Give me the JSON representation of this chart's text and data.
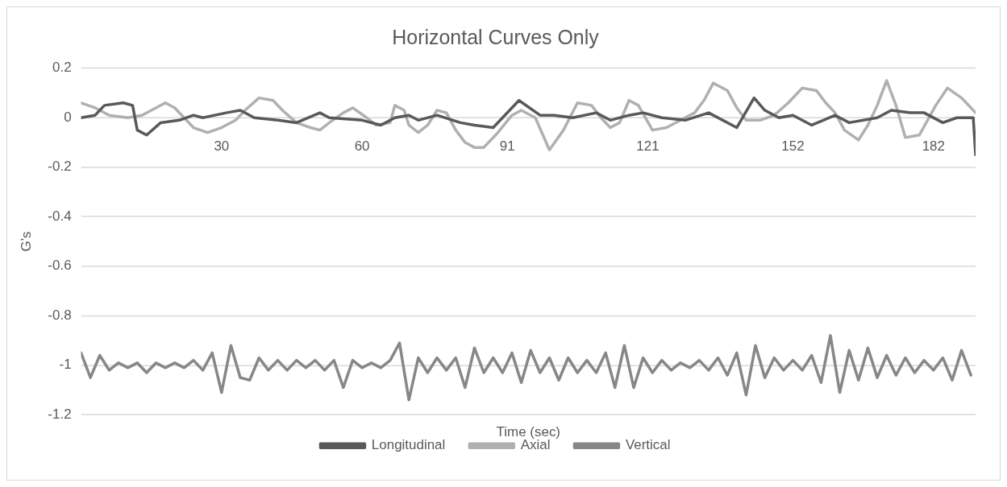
{
  "chart_data": {
    "type": "line",
    "title": "Horizontal Curves Only",
    "xlabel": "Time (sec)",
    "ylabel": "G’s",
    "xlim": [
      0,
      191
    ],
    "xticks": [
      30,
      60,
      91,
      121,
      152,
      182
    ],
    "ylim": [
      -1.2,
      0.2
    ],
    "yticks": [
      0.2,
      0,
      -0.2,
      -0.4,
      -0.6,
      -0.8,
      -1,
      -1.2
    ],
    "grid": "y",
    "legend": "bottom",
    "line_style": "solid",
    "marker": "none",
    "series": [
      {
        "name": "Longitudinal",
        "color": "#595959",
        "x": [
          0,
          3,
          5,
          9,
          11,
          12,
          14,
          17,
          21,
          24,
          26,
          31,
          34,
          37,
          42,
          46,
          51,
          53,
          60,
          64,
          67,
          70,
          72,
          76,
          81,
          84,
          88,
          93.5,
          98,
          101,
          105,
          110,
          113,
          117,
          120,
          124,
          129,
          134,
          140,
          143.7,
          146,
          149,
          152,
          156,
          161,
          164,
          170,
          173,
          177,
          180,
          184,
          187,
          190.5,
          191
        ],
        "values": [
          0,
          0.01,
          0.05,
          0.06,
          0.05,
          -0.05,
          -0.07,
          -0.02,
          -0.01,
          0.01,
          0,
          0.02,
          0.03,
          0,
          -0.01,
          -0.02,
          0.02,
          0,
          -0.01,
          -0.03,
          0,
          0.01,
          -0.01,
          0.01,
          -0.02,
          -0.03,
          -0.04,
          0.07,
          0.01,
          0.01,
          0,
          0.02,
          -0.01,
          0.01,
          0.02,
          0,
          -0.01,
          0.02,
          -0.04,
          0.08,
          0.03,
          0,
          0.01,
          -0.03,
          0.01,
          -0.02,
          0,
          0.03,
          0.02,
          0.02,
          -0.02,
          0,
          0,
          -0.15
        ]
      },
      {
        "name": "Axial",
        "color": "#b0b0b0",
        "x": [
          0,
          3,
          6,
          10,
          13,
          16,
          18,
          20,
          22,
          24,
          27,
          30,
          33,
          35,
          38,
          41,
          43,
          46,
          49,
          51,
          53,
          56,
          58,
          61,
          63,
          66,
          67,
          69,
          70,
          72,
          74,
          76,
          78,
          80,
          82,
          84,
          86,
          89,
          92,
          94,
          97,
          100,
          103,
          106,
          109,
          111,
          113,
          115,
          117,
          119,
          122,
          125,
          128,
          131,
          133,
          135,
          138,
          140,
          142,
          145,
          148,
          151,
          154,
          157,
          159,
          161,
          163,
          166,
          168,
          170,
          172,
          174,
          176,
          179,
          182.5,
          185,
          188,
          191
        ],
        "values": [
          0.06,
          0.04,
          0.01,
          0,
          0.01,
          0.04,
          0.06,
          0.04,
          0,
          -0.04,
          -0.06,
          -0.04,
          -0.01,
          0.03,
          0.08,
          0.07,
          0.03,
          -0.02,
          -0.04,
          -0.05,
          -0.02,
          0.02,
          0.04,
          0,
          -0.03,
          -0.02,
          0.05,
          0.03,
          -0.03,
          -0.06,
          -0.03,
          0.03,
          0.02,
          -0.05,
          -0.1,
          -0.12,
          -0.12,
          -0.06,
          0.01,
          0.03,
          0,
          -0.13,
          -0.05,
          0.06,
          0.05,
          0,
          -0.04,
          -0.02,
          0.07,
          0.05,
          -0.05,
          -0.04,
          -0.01,
          0.02,
          0.07,
          0.14,
          0.11,
          0.04,
          -0.01,
          -0.01,
          0.01,
          0.06,
          0.12,
          0.11,
          0.06,
          0.02,
          -0.05,
          -0.09,
          -0.03,
          0.05,
          0.15,
          0.05,
          -0.08,
          -0.07,
          0.05,
          0.12,
          0.08,
          0.02
        ]
      },
      {
        "name": "Vertical",
        "color": "#878787",
        "x": [
          0,
          2,
          4,
          6,
          8,
          10,
          12,
          14,
          16,
          18,
          20,
          22,
          24,
          26,
          28,
          30,
          32,
          34,
          36,
          38,
          40,
          42,
          44,
          46,
          48,
          50,
          52,
          54,
          56,
          58,
          60,
          62,
          64,
          66,
          68,
          70,
          72,
          74,
          76,
          78,
          80,
          82,
          84,
          86,
          88,
          90,
          92,
          94,
          96,
          98,
          100,
          102,
          104,
          106,
          108,
          110,
          112,
          114,
          116,
          118,
          120,
          122,
          124,
          126,
          128,
          130,
          132,
          134,
          136,
          138,
          140,
          142,
          144,
          146,
          148,
          150,
          152,
          154,
          156,
          158,
          160,
          162,
          164,
          166,
          168,
          170,
          172,
          174,
          176,
          178,
          180,
          182,
          184,
          186,
          188,
          190
        ],
        "values": [
          -0.95,
          -1.05,
          -0.96,
          -1.02,
          -0.99,
          -1.01,
          -0.99,
          -1.03,
          -0.99,
          -1.01,
          -0.99,
          -1.01,
          -0.98,
          -1.02,
          -0.95,
          -1.11,
          -0.92,
          -1.05,
          -1.06,
          -0.97,
          -1.02,
          -0.98,
          -1.02,
          -0.98,
          -1.01,
          -0.98,
          -1.02,
          -0.98,
          -1.09,
          -0.98,
          -1.01,
          -0.99,
          -1.01,
          -0.98,
          -0.91,
          -1.14,
          -0.97,
          -1.03,
          -0.97,
          -1.02,
          -0.97,
          -1.09,
          -0.93,
          -1.03,
          -0.97,
          -1.03,
          -0.95,
          -1.07,
          -0.94,
          -1.03,
          -0.97,
          -1.06,
          -0.97,
          -1.03,
          -0.98,
          -1.03,
          -0.95,
          -1.09,
          -0.92,
          -1.09,
          -0.97,
          -1.03,
          -0.98,
          -1.02,
          -0.99,
          -1.01,
          -0.98,
          -1.02,
          -0.97,
          -1.04,
          -0.95,
          -1.12,
          -0.92,
          -1.05,
          -0.97,
          -1.02,
          -0.98,
          -1.02,
          -0.96,
          -1.07,
          -0.88,
          -1.11,
          -0.94,
          -1.06,
          -0.93,
          -1.05,
          -0.96,
          -1.04,
          -0.97,
          -1.03,
          -0.98,
          -1.02,
          -0.97,
          -1.06,
          -0.94,
          -1.04
        ]
      }
    ]
  }
}
